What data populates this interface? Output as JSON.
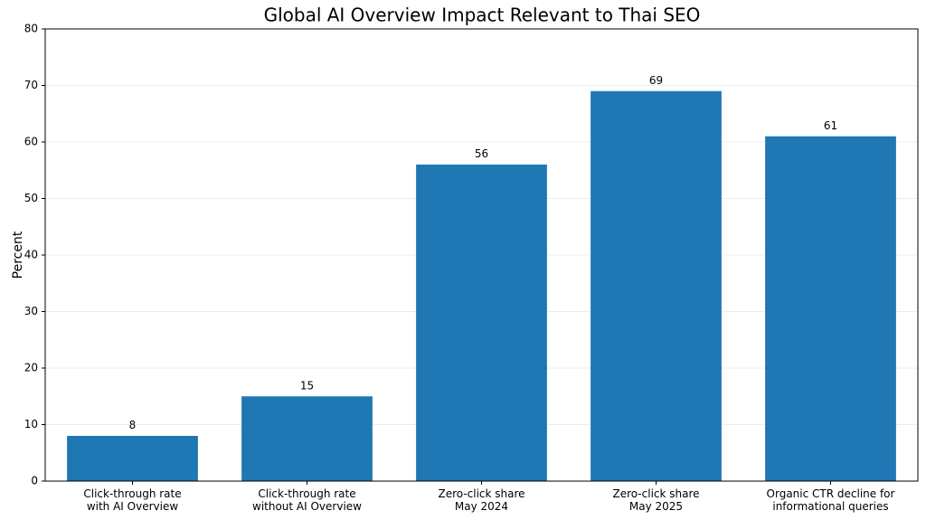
{
  "chart_data": {
    "type": "bar",
    "title": "Global AI Overview Impact Relevant to Thai SEO",
    "ylabel": "Percent",
    "categories": [
      "Click-through rate\nwith AI Overview",
      "Click-through rate\nwithout AI Overview",
      "Zero-click share\nMay 2024",
      "Zero-click share\nMay 2025",
      "Organic CTR decline for\ninformational queries"
    ],
    "values": [
      8,
      15,
      56,
      69,
      61
    ],
    "color": "#1f77b4",
    "ylim": [
      0,
      80
    ],
    "yticks": [
      0,
      10,
      20,
      30,
      40,
      50,
      60,
      70,
      80
    ],
    "grid": true
  }
}
